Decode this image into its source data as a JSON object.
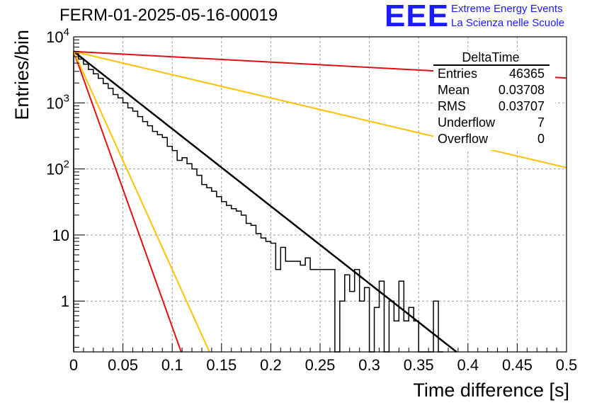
{
  "header": {
    "run_title": "FERM-01-2025-05-16-00019",
    "logo": {
      "mark": "EEE",
      "line1": "Extreme Energy Events",
      "line2": "La Scienza nelle Scuole",
      "color": "#1a1aff"
    }
  },
  "stats_box": {
    "title": "DeltaTime",
    "rows": [
      {
        "label": "Entries",
        "value": "46365"
      },
      {
        "label": "Mean",
        "value": "0.03708"
      },
      {
        "label": "RMS",
        "value": "0.03707"
      },
      {
        "label": "Underflow",
        "value": "7"
      },
      {
        "label": "Overflow",
        "value": "0"
      }
    ]
  },
  "chart_data": {
    "type": "line",
    "xlabel": "Time difference [s]",
    "ylabel": "Entries/bin",
    "xlim": [
      0,
      0.5
    ],
    "ylim": [
      0.17,
      10000
    ],
    "y_scale": "log",
    "grid": true,
    "x_ticks": [
      "0",
      "0.05",
      "0.1",
      "0.15",
      "0.2",
      "0.25",
      "0.3",
      "0.35",
      "0.4",
      "0.45",
      "0.5"
    ],
    "y_ticks": [
      {
        "value": 10000,
        "base": "10",
        "exp": "4"
      },
      {
        "value": 1000,
        "base": "10",
        "exp": "3"
      },
      {
        "value": 100,
        "base": "10",
        "exp": "2"
      },
      {
        "value": 10,
        "base": "10",
        "exp": ""
      },
      {
        "value": 1,
        "base": "1",
        "exp": ""
      }
    ],
    "histogram": {
      "bin_width": 0.005,
      "color": "#000000",
      "counts": [
        5600,
        4600,
        3850,
        3200,
        2750,
        2350,
        1960,
        1660,
        1340,
        1190,
        1000,
        840,
        750,
        620,
        520,
        450,
        370,
        330,
        300,
        220,
        190,
        135,
        148,
        120,
        100,
        80,
        58,
        52,
        46,
        38,
        32,
        28,
        25,
        23,
        20,
        15,
        14,
        10.5,
        9,
        8,
        7.5,
        3.0,
        6.5,
        4,
        4,
        4,
        3.5,
        4.5,
        3.0,
        3.0,
        3.0,
        3.0,
        3.0,
        0.17,
        1.0,
        2.5,
        1.4,
        3.0,
        1.0,
        1.6,
        0.17,
        0.8,
        2.0,
        0.17,
        1.0,
        0.5,
        2.0,
        0.5,
        0.8,
        0.5,
        0.17,
        0.17,
        0.17,
        1.0,
        0.17
      ]
    },
    "series": [
      {
        "name": "",
        "color": "#000000",
        "y0": 6000,
        "slope": 26.96
      },
      {
        "name": "",
        "color": "#ffc000",
        "y0": 6000,
        "slope": 8.1
      },
      {
        "name": "",
        "color": "#e01010",
        "y0": 6000,
        "slope": 1.85
      },
      {
        "name": "",
        "color": "#e01010",
        "y0": 6000,
        "slope": 96
      },
      {
        "name": "",
        "color": "#ffc000",
        "y0": 6000,
        "slope": 76
      }
    ]
  }
}
